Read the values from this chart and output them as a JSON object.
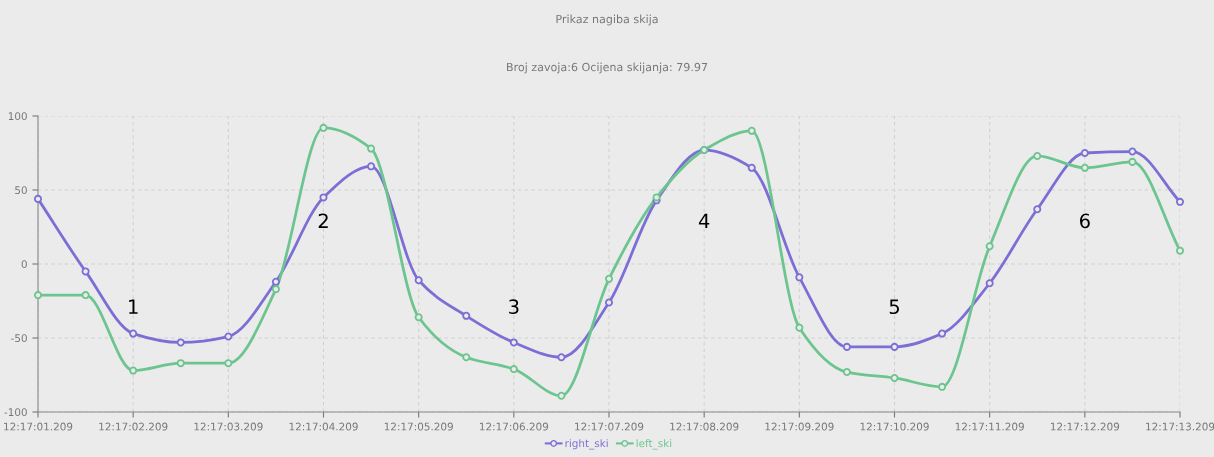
{
  "chart_data": {
    "type": "line",
    "title": "Prikaz nagiba skija",
    "subtitle": "Broj zavoja:6 Ocijena skijanja: 79.97",
    "categories": [
      "12:17:01.209",
      null,
      "12:17:02.209",
      null,
      "12:17:03.209",
      null,
      "12:17:04.209",
      null,
      "12:17:05.209",
      null,
      "12:17:06.209",
      null,
      "12:17:07.209",
      null,
      "12:17:08.209",
      null,
      "12:17:09.209",
      null,
      "12:17:10.209",
      null,
      "12:17:11.209",
      null,
      "12:17:12.209",
      null,
      "12:17:13.209"
    ],
    "series": [
      {
        "name": "right_ski",
        "color": "#7b6fd6",
        "values": [
          44,
          -5,
          -47,
          -53,
          -49,
          -12,
          45,
          66,
          -11,
          -35,
          -53,
          -63,
          -26,
          43,
          77,
          65,
          -9,
          -56,
          -56,
          -47,
          -13,
          37,
          75,
          76,
          42
        ]
      },
      {
        "name": "left_ski",
        "color": "#6cc58f",
        "values": [
          -21,
          -21,
          -72,
          -67,
          -67,
          -17,
          92,
          78,
          -36,
          -63,
          -71,
          -89,
          -10,
          45,
          77,
          90,
          -43,
          -73,
          -77,
          -83,
          12,
          73,
          65,
          69,
          9
        ]
      }
    ],
    "ylim": [
      -100,
      100
    ],
    "yticks": [
      -100,
      -50,
      0,
      50,
      100
    ],
    "annotations": [
      "1",
      "2",
      "3",
      "4",
      "5",
      "6"
    ],
    "grid": true,
    "legend": "bottom",
    "marker": "circle",
    "line_style": "solid"
  }
}
